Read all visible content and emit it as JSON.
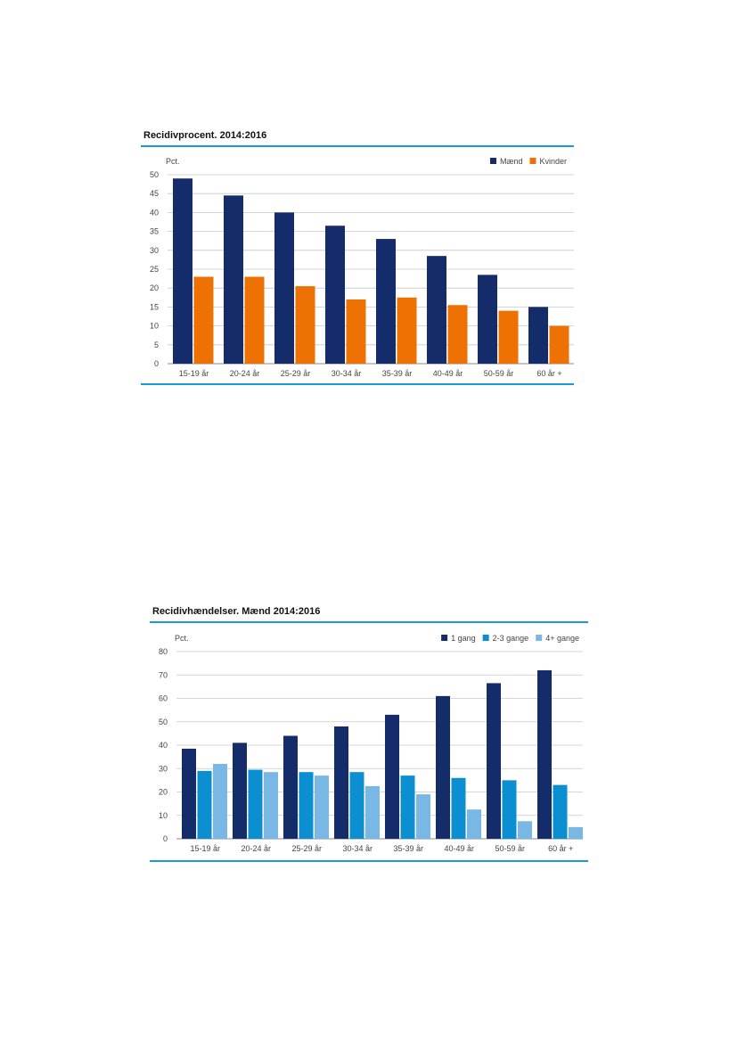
{
  "chart_data": [
    {
      "type": "bar",
      "title": "Recidivprocent. 2014:2016",
      "ylabel": "Pct.",
      "ylim": [
        0,
        50
      ],
      "yticks": [
        0,
        5,
        10,
        15,
        20,
        25,
        30,
        35,
        40,
        45,
        50
      ],
      "grid": true,
      "legend_position": "top-right",
      "categories": [
        "15-19 år",
        "20-24 år",
        "25-29 år",
        "30-34 år",
        "35-39 år",
        "40-49 år",
        "50-59 år",
        "60 år +"
      ],
      "series": [
        {
          "name": "Mænd",
          "color": "#152c6b",
          "values": [
            49,
            44.5,
            40,
            36.5,
            33,
            28.5,
            23.5,
            15
          ]
        },
        {
          "name": "Kvinder",
          "color": "#ee7203",
          "values": [
            23,
            23,
            20.5,
            17,
            17.5,
            15.5,
            14,
            10
          ]
        }
      ]
    },
    {
      "type": "bar",
      "title": "Recidivhændelser. Mænd 2014:2016",
      "ylabel": "Pct.",
      "ylim": [
        0,
        80
      ],
      "yticks": [
        0,
        10,
        20,
        30,
        40,
        50,
        60,
        70,
        80
      ],
      "grid": true,
      "legend_position": "top-right",
      "categories": [
        "15-19 år",
        "20-24 år",
        "25-29 år",
        "30-34 år",
        "35-39 år",
        "40-49 år",
        "50-59 år",
        "60 år +"
      ],
      "series": [
        {
          "name": "1 gang",
          "color": "#152c6b",
          "values": [
            38.5,
            41,
            44,
            48,
            53,
            61,
            66.5,
            72
          ]
        },
        {
          "name": "2-3 gange",
          "color": "#0b8fd1",
          "values": [
            29,
            29.5,
            28.5,
            28.5,
            27,
            26,
            25,
            23
          ]
        },
        {
          "name": "4+ gange",
          "color": "#79b8e5",
          "values": [
            32,
            28.5,
            27,
            22.5,
            19,
            12.5,
            7.5,
            5
          ]
        }
      ]
    }
  ]
}
